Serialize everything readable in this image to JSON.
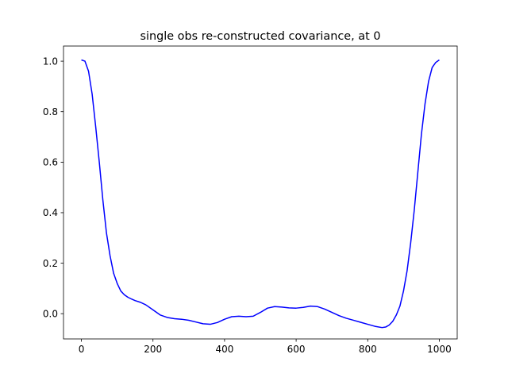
{
  "chart_data": {
    "type": "line",
    "title": "single obs re-constructed covariance, at 0",
    "xlabel": "",
    "ylabel": "",
    "xlim": [
      -50,
      1050
    ],
    "ylim": [
      -0.1,
      1.06
    ],
    "xticks": [
      0,
      200,
      400,
      600,
      800,
      1000
    ],
    "xtick_labels": [
      "0",
      "200",
      "400",
      "600",
      "800",
      "1000"
    ],
    "yticks": [
      0.0,
      0.2,
      0.4,
      0.6,
      0.8,
      1.0
    ],
    "ytick_labels": [
      "0.0",
      "0.2",
      "0.4",
      "0.6",
      "0.8",
      "1.0"
    ],
    "grid": false,
    "legend": "none",
    "series": [
      {
        "color": "#0000ff",
        "x": [
          0,
          10,
          20,
          30,
          40,
          50,
          60,
          70,
          80,
          90,
          100,
          110,
          120,
          130,
          140,
          150,
          165,
          180,
          200,
          220,
          240,
          260,
          280,
          300,
          320,
          340,
          360,
          380,
          400,
          420,
          440,
          460,
          480,
          500,
          520,
          540,
          560,
          580,
          600,
          620,
          640,
          660,
          680,
          700,
          720,
          740,
          760,
          780,
          800,
          820,
          840,
          850,
          860,
          870,
          880,
          890,
          900,
          910,
          920,
          930,
          940,
          950,
          960,
          970,
          980,
          990,
          1000
        ],
        "y": [
          1.005,
          1.0,
          0.96,
          0.87,
          0.74,
          0.6,
          0.45,
          0.32,
          0.23,
          0.16,
          0.12,
          0.09,
          0.075,
          0.065,
          0.058,
          0.052,
          0.045,
          0.035,
          0.015,
          -0.005,
          -0.015,
          -0.02,
          -0.022,
          -0.026,
          -0.033,
          -0.04,
          -0.042,
          -0.035,
          -0.022,
          -0.012,
          -0.01,
          -0.012,
          -0.01,
          0.005,
          0.022,
          0.028,
          0.026,
          0.023,
          0.022,
          0.025,
          0.03,
          0.028,
          0.018,
          0.005,
          -0.008,
          -0.018,
          -0.026,
          -0.034,
          -0.042,
          -0.05,
          -0.055,
          -0.053,
          -0.045,
          -0.03,
          -0.005,
          0.03,
          0.09,
          0.17,
          0.28,
          0.41,
          0.56,
          0.71,
          0.83,
          0.92,
          0.975,
          0.995,
          1.005
        ]
      }
    ]
  }
}
